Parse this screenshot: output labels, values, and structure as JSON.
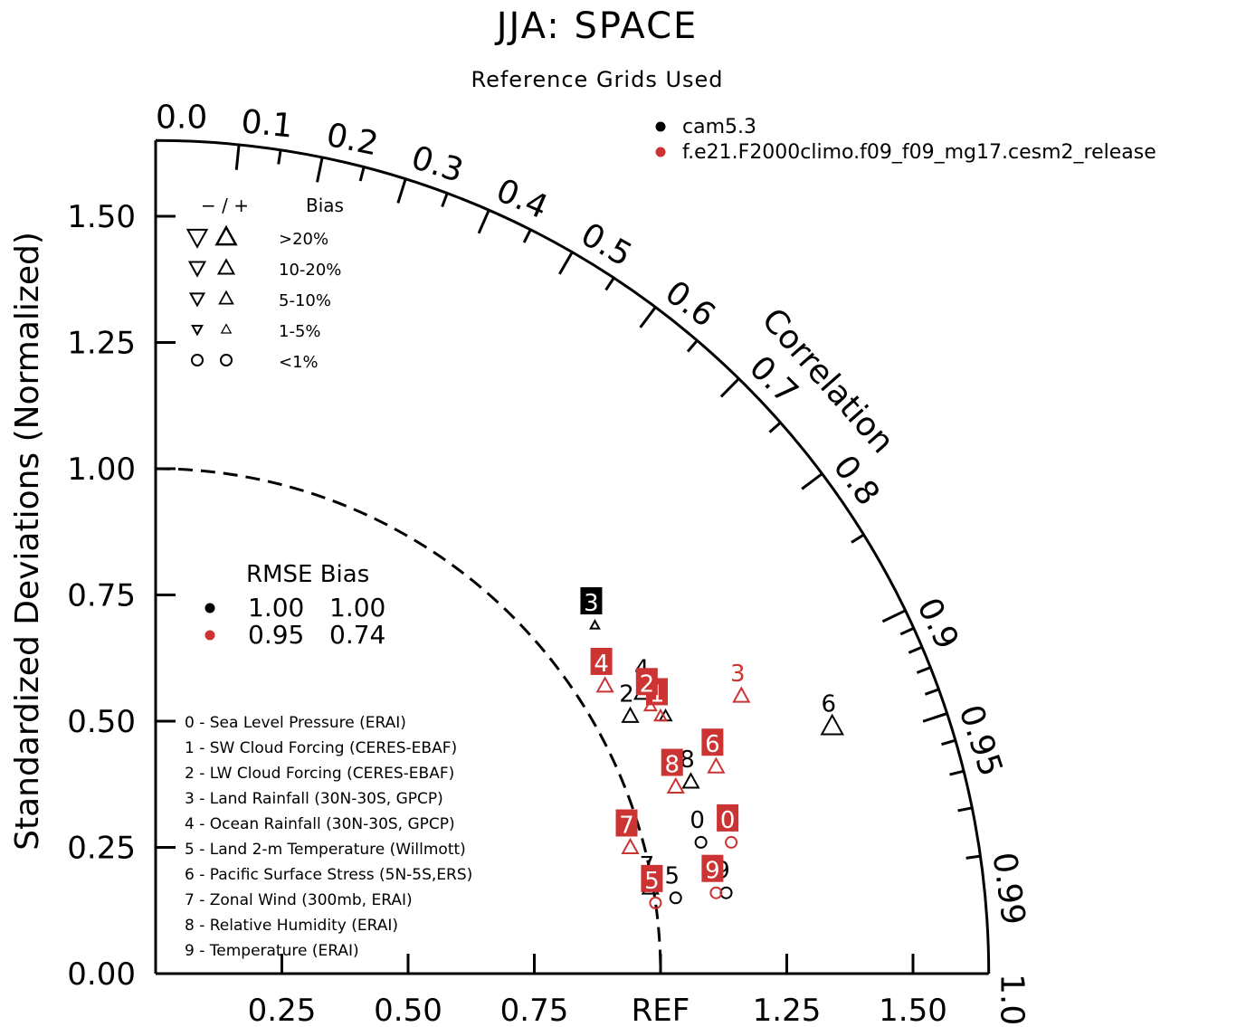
{
  "title": "JJA: SPACE",
  "subtitle": "Reference Grids Used",
  "colors": {
    "black": "#000000",
    "red": "#cc3333"
  },
  "models": [
    {
      "name": "cam5.3",
      "color": "#000000",
      "rmse": "1.00",
      "bias": "1.00"
    },
    {
      "name": "f.e21.F2000climo.f09_f09_mg17.cesm2_release",
      "color": "#cc3333",
      "rmse": "0.95",
      "bias": "0.74"
    }
  ],
  "bias_legend": {
    "header_signs": "− / +",
    "header_label": "Bias",
    "rows": [
      {
        "label": ">20%",
        "symbol": "triangle"
      },
      {
        "label": "10-20%",
        "symbol": "triangle"
      },
      {
        "label": "5-10%",
        "symbol": "triangle"
      },
      {
        "label": "1-5%",
        "symbol": "triangle"
      },
      {
        "label": "<1%",
        "symbol": "circle"
      }
    ]
  },
  "rmse_legend": {
    "header": "RMSE Bias"
  },
  "variables": [
    "0 - Sea Level Pressure (ERAI)",
    "1 - SW Cloud Forcing (CERES-EBAF)",
    "2 - LW Cloud Forcing (CERES-EBAF)",
    "3 - Land Rainfall (30N-30S, GPCP)",
    "4 - Ocean Rainfall (30N-30S, GPCP)",
    "5 - Land 2-m Temperature (Willmott)",
    "6 - Pacific Surface Stress (5N-5S,ERS)",
    "7 - Zonal Wind (300mb, ERAI)",
    "8 - Relative Humidity (ERAI)",
    "9 - Temperature (ERAI)"
  ],
  "chart_data": {
    "type": "scatter",
    "kind": "taylor-diagram",
    "ylabel": "Standardized Deviations (Normalized)",
    "arc_label": "Correlation",
    "ref_label": "REF",
    "std_max": 1.65,
    "ref_std": 1.0,
    "y_ticks": [
      "0.00",
      "0.25",
      "0.50",
      "0.75",
      "1.00",
      "1.25",
      "1.50"
    ],
    "x_ticks": [
      "0.25",
      "0.50",
      "0.75",
      "1.25",
      "1.50"
    ],
    "corr_labels": [
      "0.0",
      "0.1",
      "0.2",
      "0.3",
      "0.4",
      "0.5",
      "0.6",
      "0.7",
      "0.8",
      "0.9",
      "0.95",
      "0.99",
      "1.0"
    ],
    "series": [
      {
        "name": "cam5.3",
        "color": "#000000",
        "points": [
          {
            "id": "0",
            "x": 1.08,
            "y": 0.26,
            "marker": "circle-small"
          },
          {
            "id": "1",
            "x": 1.01,
            "y": 0.51,
            "marker": "triangle-up-small"
          },
          {
            "id": "2",
            "x": 0.94,
            "y": 0.51,
            "marker": "triangle-up"
          },
          {
            "id": "3",
            "x": 0.87,
            "y": 0.69,
            "marker": "triangle-up-tiny",
            "highlight": true
          },
          {
            "id": "4",
            "x": 0.97,
            "y": 0.56,
            "marker": "triangle-up-large"
          },
          {
            "id": "5",
            "x": 1.03,
            "y": 0.15,
            "marker": "circle-small"
          },
          {
            "id": "6",
            "x": 1.34,
            "y": 0.49,
            "marker": "triangle-up-large"
          },
          {
            "id": "7",
            "x": 0.98,
            "y": 0.17,
            "marker": "triangle-up"
          },
          {
            "id": "8",
            "x": 1.06,
            "y": 0.38,
            "marker": "triangle-up"
          },
          {
            "id": "9",
            "x": 1.13,
            "y": 0.16,
            "marker": "circle-small"
          }
        ]
      },
      {
        "name": "f.e21.F2000climo.f09_f09_mg17.cesm2_release",
        "color": "#cc3333",
        "points": [
          {
            "id": "0",
            "x": 1.14,
            "y": 0.26,
            "marker": "circle-small",
            "highlight": true
          },
          {
            "id": "1",
            "x": 1.0,
            "y": 0.51,
            "marker": "triangle-up-small",
            "highlight": true
          },
          {
            "id": "2",
            "x": 0.98,
            "y": 0.53,
            "marker": "triangle-up-small",
            "highlight": true
          },
          {
            "id": "3",
            "x": 1.16,
            "y": 0.55,
            "marker": "triangle-up",
            "highlight": false
          },
          {
            "id": "4",
            "x": 0.89,
            "y": 0.57,
            "marker": "triangle-up",
            "highlight": true
          },
          {
            "id": "5",
            "x": 0.99,
            "y": 0.14,
            "marker": "circle-small",
            "highlight": true
          },
          {
            "id": "6",
            "x": 1.11,
            "y": 0.41,
            "marker": "triangle-up",
            "highlight": true
          },
          {
            "id": "7",
            "x": 0.94,
            "y": 0.25,
            "marker": "triangle-up",
            "highlight": true
          },
          {
            "id": "8",
            "x": 1.03,
            "y": 0.37,
            "marker": "triangle-up",
            "highlight": true
          },
          {
            "id": "9",
            "x": 1.11,
            "y": 0.16,
            "marker": "circle-small",
            "highlight": true
          }
        ]
      }
    ]
  }
}
